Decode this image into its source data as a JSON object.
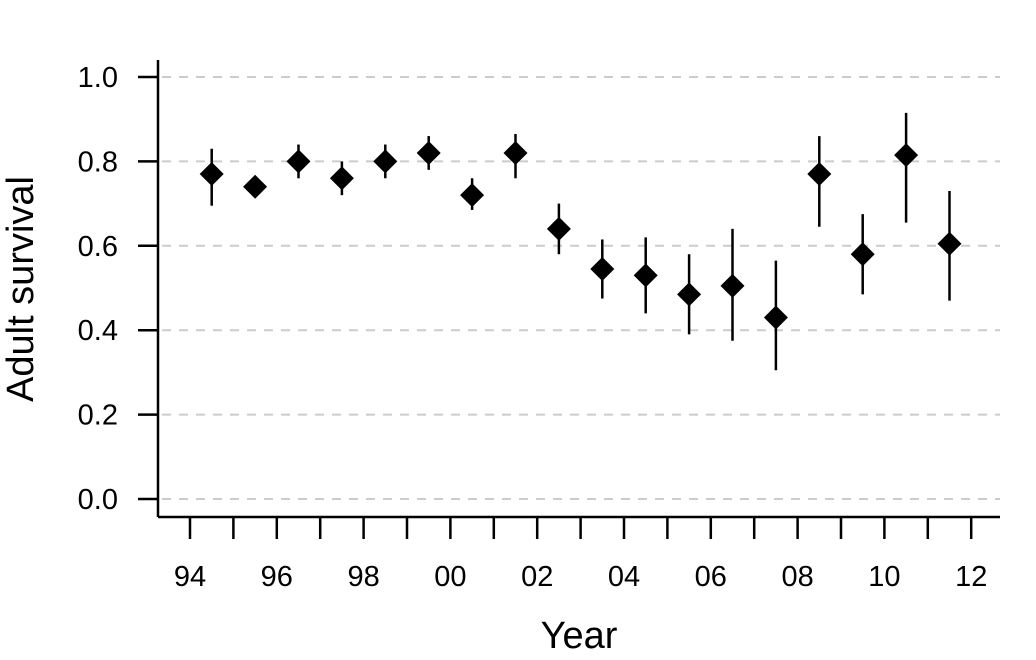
{
  "chart_data": {
    "type": "scatter",
    "xlabel": "Year",
    "ylabel": "Adult survival",
    "xlim": [
      1993.7,
      2013.1
    ],
    "ylim": [
      0.0,
      1.0
    ],
    "y_ticks": [
      0.0,
      0.2,
      0.4,
      0.6,
      0.8,
      1.0
    ],
    "y_tick_labels": [
      "0.0",
      "0.2",
      "0.4",
      "0.6",
      "0.8",
      "1.0"
    ],
    "x_ticks_major": [
      1994,
      1996,
      1998,
      2000,
      2002,
      2004,
      2006,
      2008,
      2010,
      2012
    ],
    "x_tick_labels": [
      "94",
      "96",
      "98",
      "00",
      "02",
      "04",
      "06",
      "08",
      "10",
      "12"
    ],
    "x_ticks_minor": [
      1995,
      1997,
      1999,
      2001,
      2003,
      2005,
      2007,
      2009,
      2011
    ],
    "grid": "horizontal dashed",
    "marker": "diamond",
    "colors": {
      "points": "#000000",
      "grid": "#cccccc",
      "axis": "#000000"
    },
    "points": [
      {
        "x": 1994.5,
        "y": 0.77,
        "lower": 0.695,
        "upper": 0.83
      },
      {
        "x": 1995.5,
        "y": 0.74,
        "lower": 0.715,
        "upper": 0.765
      },
      {
        "x": 1996.5,
        "y": 0.8,
        "lower": 0.76,
        "upper": 0.84
      },
      {
        "x": 1997.5,
        "y": 0.76,
        "lower": 0.72,
        "upper": 0.8
      },
      {
        "x": 1998.5,
        "y": 0.8,
        "lower": 0.76,
        "upper": 0.84
      },
      {
        "x": 1999.5,
        "y": 0.82,
        "lower": 0.78,
        "upper": 0.86
      },
      {
        "x": 2000.5,
        "y": 0.72,
        "lower": 0.685,
        "upper": 0.76
      },
      {
        "x": 2001.5,
        "y": 0.82,
        "lower": 0.76,
        "upper": 0.865
      },
      {
        "x": 2002.5,
        "y": 0.64,
        "lower": 0.58,
        "upper": 0.7
      },
      {
        "x": 2003.5,
        "y": 0.545,
        "lower": 0.475,
        "upper": 0.615
      },
      {
        "x": 2004.5,
        "y": 0.53,
        "lower": 0.44,
        "upper": 0.62
      },
      {
        "x": 2005.5,
        "y": 0.485,
        "lower": 0.39,
        "upper": 0.58
      },
      {
        "x": 2006.5,
        "y": 0.505,
        "lower": 0.375,
        "upper": 0.64
      },
      {
        "x": 2007.5,
        "y": 0.43,
        "lower": 0.305,
        "upper": 0.565
      },
      {
        "x": 2008.5,
        "y": 0.77,
        "lower": 0.645,
        "upper": 0.86
      },
      {
        "x": 2009.5,
        "y": 0.58,
        "lower": 0.485,
        "upper": 0.675
      },
      {
        "x": 2010.5,
        "y": 0.815,
        "lower": 0.655,
        "upper": 0.915
      },
      {
        "x": 2011.5,
        "y": 0.605,
        "lower": 0.47,
        "upper": 0.73
      }
    ]
  }
}
